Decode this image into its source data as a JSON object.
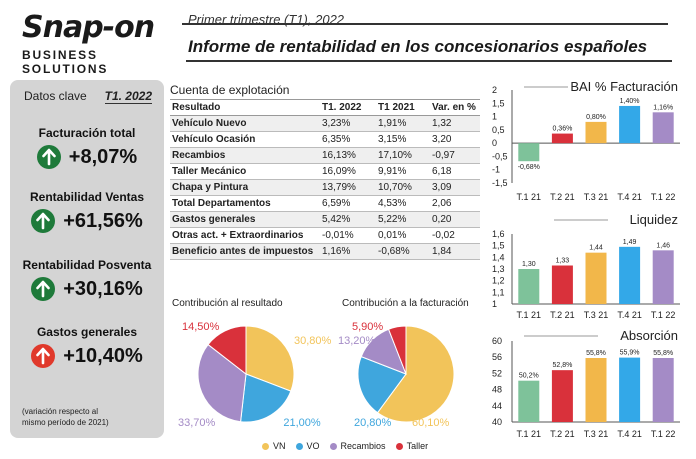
{
  "header": {
    "logo_main": "Snap-on",
    "logo_sub": "BUSINESS SOLUTIONS",
    "subtitle": "Primer trimestre (T1), 2022",
    "title": "Informe de rentabilidad en los concesionarios españoles"
  },
  "panel": {
    "heading": "Datos clave",
    "period": "T1. 2022",
    "kpis": [
      {
        "label": "Facturación total",
        "value": "+8,07%",
        "direction": "up",
        "color": "#1e7a3a",
        "icon": "arrow-up-icon"
      },
      {
        "label": "Rentabilidad Ventas",
        "value": "+61,56%",
        "direction": "up",
        "color": "#1e7a3a",
        "icon": "arrow-up-icon"
      },
      {
        "label": "Rentabilidad Posventa",
        "value": "+30,16%",
        "direction": "up",
        "color": "#1e7a3a",
        "icon": "arrow-up-icon"
      },
      {
        "label": "Gastos generales",
        "value": "+10,40%",
        "direction": "up",
        "color": "#e0392b",
        "icon": "arrow-up-icon"
      }
    ],
    "footnote_line1": "(variación respecto al",
    "footnote_line2": "mismo período de 2021)"
  },
  "table": {
    "title": "Cuenta de explotación",
    "headers": [
      "Resultado",
      "T1. 2022",
      "T1 2021",
      "Var. en %"
    ],
    "rows": [
      [
        "Vehículo Nuevo",
        "3,23%",
        "1,91%",
        "1,32"
      ],
      [
        "Vehículo Ocasión",
        "6,35%",
        "3,15%",
        "3,20"
      ],
      [
        "Recambios",
        "16,13%",
        "17,10%",
        "-0,97"
      ],
      [
        "Taller Mecánico",
        "16,09%",
        "9,91%",
        "6,18"
      ],
      [
        "Chapa y Pintura",
        "13,79%",
        "10,70%",
        "3,09"
      ],
      [
        "Total Departamentos",
        "6,59%",
        "4,53%",
        "2,06"
      ],
      [
        "Gastos generales",
        "5,42%",
        "5,22%",
        "0,20"
      ],
      [
        "Otras act. + Extraordinarios",
        "-0,01%",
        "0,01%",
        "-0,02"
      ],
      [
        "Beneficio antes de impuestos",
        "1,16%",
        "-0,68%",
        "1,84"
      ]
    ]
  },
  "colors": {
    "vn": "#f2c45a",
    "vo": "#3fa6dd",
    "recambios": "#a48bc6",
    "taller": "#d9313b",
    "q1_21": "#7ec29a",
    "q2_21": "#d9313b",
    "q3_21": "#f2b74a",
    "q4_21": "#33a8e8",
    "q1_22": "#a48bc6"
  },
  "legend": [
    "VN",
    "VO",
    "Recambios",
    "Taller"
  ],
  "chart_data": [
    {
      "type": "pie",
      "title": "Contribución al resultado",
      "categories": [
        "VN",
        "VO",
        "Recambios",
        "Taller"
      ],
      "values": [
        30.8,
        21.0,
        33.7,
        14.5
      ],
      "labels": [
        "30,80%",
        "21,00%",
        "33,70%",
        "14,50%"
      ]
    },
    {
      "type": "pie",
      "title": "Contribución a la facturación",
      "categories": [
        "VN",
        "VO",
        "Recambios",
        "Taller"
      ],
      "values": [
        60.1,
        20.8,
        13.2,
        5.9
      ],
      "labels": [
        "60,10%",
        "20,80%",
        "13,20%",
        "5,90%"
      ]
    },
    {
      "type": "bar",
      "title": "BAI % Facturación",
      "categories": [
        "T.1 21",
        "T.2 21",
        "T.3 21",
        "T.4 21",
        "T.1 22"
      ],
      "values": [
        -0.68,
        0.36,
        0.8,
        1.4,
        1.16
      ],
      "labels": [
        "-0,68%",
        "0,36%",
        "0,80%",
        "1,40%",
        "1,16%"
      ],
      "ylim": [
        -1.5,
        2
      ],
      "yticks": [
        "2",
        "1,5",
        "1",
        "0,5",
        "0",
        "-0,5",
        "-1",
        "-1,5"
      ],
      "ytick_values": [
        2,
        1.5,
        1,
        0.5,
        0,
        -0.5,
        -1,
        -1.5
      ]
    },
    {
      "type": "bar",
      "title": "Liquidez",
      "categories": [
        "T.1 21",
        "T.2 21",
        "T.3 21",
        "T.4 21",
        "T.1 22"
      ],
      "values": [
        1.3,
        1.33,
        1.44,
        1.49,
        1.46
      ],
      "labels": [
        "1,30",
        "1,33",
        "1,44",
        "1,49",
        "1,46"
      ],
      "ylim": [
        1,
        1.6
      ],
      "yticks": [
        "1,6",
        "1,5",
        "1,4",
        "1,3",
        "1,2",
        "1,1",
        "1"
      ],
      "ytick_values": [
        1.6,
        1.5,
        1.4,
        1.3,
        1.2,
        1.1,
        1
      ]
    },
    {
      "type": "bar",
      "title": "Absorción",
      "categories": [
        "T.1 21",
        "T.2 21",
        "T.3 21",
        "T.4 21",
        "T.1 22"
      ],
      "values": [
        50.2,
        52.8,
        55.8,
        55.9,
        55.8
      ],
      "labels": [
        "50,2%",
        "52,8%",
        "55,8%",
        "55,9%",
        "55,8%"
      ],
      "ylim": [
        40,
        60
      ],
      "yticks": [
        "60",
        "56",
        "52",
        "48",
        "44",
        "40"
      ],
      "ytick_values": [
        60,
        56,
        52,
        48,
        44,
        40
      ]
    }
  ]
}
